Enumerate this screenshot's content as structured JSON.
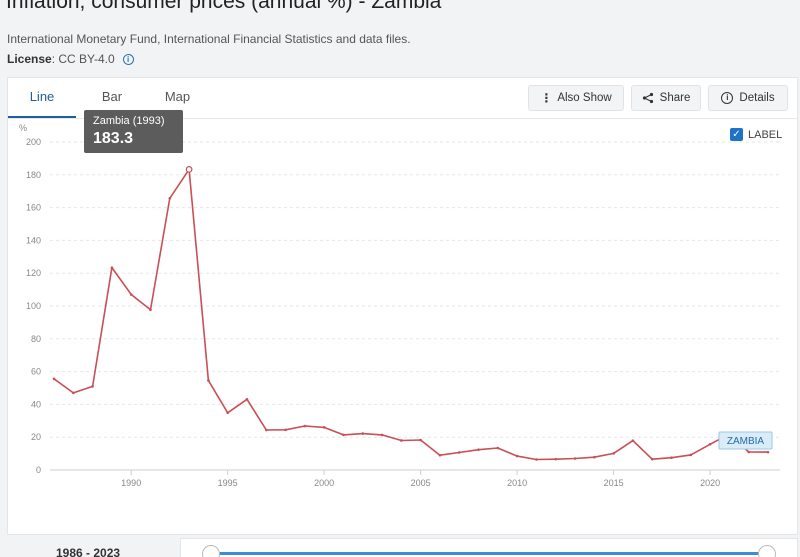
{
  "page": {
    "title": "Inflation, consumer prices (annual %) - Zambia",
    "source": "International Monetary Fund, International Financial Statistics and data files.",
    "license_label": "License",
    "license_value": ": CC BY-4.0"
  },
  "tabs": [
    {
      "label": "Line",
      "active": true
    },
    {
      "label": "Bar",
      "active": false
    },
    {
      "label": "Map",
      "active": false
    }
  ],
  "toolbar": {
    "also_show": "Also Show",
    "share": "Share",
    "details": "Details"
  },
  "label_toggle": {
    "text": "LABEL",
    "checked": true
  },
  "tooltip": {
    "name": "Zambia (1993)",
    "value": "183.3"
  },
  "range": {
    "label": "1986 - 2023"
  },
  "colors": {
    "line": "#c94f55",
    "accent": "#1f5d9c",
    "tooltip_bg": "#5c5c5c"
  },
  "chart_data": {
    "type": "line",
    "ylabel": "%",
    "ylim": [
      0,
      200
    ],
    "yticks": [
      0,
      20,
      40,
      60,
      80,
      100,
      120,
      140,
      160,
      180,
      200
    ],
    "xlim": [
      1986,
      2023
    ],
    "xticks": [
      1990,
      1995,
      2000,
      2005,
      2010,
      2015,
      2020
    ],
    "grid": true,
    "series": [
      {
        "name": "ZAMBIA",
        "x": [
          1986,
          1987,
          1988,
          1989,
          1990,
          1991,
          1992,
          1993,
          1994,
          1995,
          1996,
          1997,
          1998,
          1999,
          2000,
          2001,
          2002,
          2003,
          2004,
          2005,
          2006,
          2007,
          2008,
          2009,
          2010,
          2011,
          2012,
          2013,
          2014,
          2015,
          2016,
          2017,
          2018,
          2019,
          2020,
          2021,
          2022,
          2023
        ],
        "values": [
          55.6,
          47.0,
          51.0,
          123.4,
          107.0,
          97.7,
          165.7,
          183.3,
          54.6,
          34.9,
          43.1,
          24.4,
          24.5,
          26.8,
          26.0,
          21.4,
          22.2,
          21.4,
          18.0,
          18.3,
          9.0,
          10.7,
          12.4,
          13.4,
          8.5,
          6.4,
          6.6,
          7.0,
          7.8,
          10.1,
          17.9,
          6.6,
          7.5,
          9.2,
          15.7,
          22.0,
          11.0,
          10.9
        ]
      }
    ],
    "highlight": {
      "x": 1993,
      "value": 183.3
    }
  }
}
